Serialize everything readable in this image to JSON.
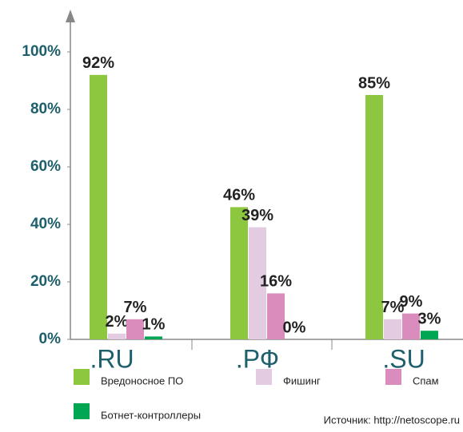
{
  "chart_data": {
    "type": "bar",
    "categories": [
      ".RU",
      ".РФ",
      ".SU"
    ],
    "series": [
      {
        "name": "Вредоносное ПО",
        "color": "#8dc63f",
        "values": [
          92,
          46,
          85
        ],
        "value_labels": [
          "92%",
          "46%",
          "85%"
        ]
      },
      {
        "name": "Фишинг",
        "color": "#e3cbe2",
        "values": [
          2,
          39,
          7
        ],
        "value_labels": [
          "2%",
          "39%",
          "7%"
        ]
      },
      {
        "name": "Спам",
        "color": "#da8cbd",
        "values": [
          7,
          16,
          9
        ],
        "value_labels": [
          "7%",
          "16%",
          "9%"
        ]
      },
      {
        "name": "Ботнет-контроллеры",
        "color": "#00a651",
        "values": [
          1,
          0,
          3
        ],
        "value_labels": [
          "1%",
          "0%",
          "3%"
        ]
      }
    ],
    "ylim": [
      0,
      100
    ],
    "yticks": [
      {
        "value": 0,
        "label": "0%"
      },
      {
        "value": 20,
        "label": "20%"
      },
      {
        "value": 40,
        "label": "40%"
      },
      {
        "value": 60,
        "label": "60%"
      },
      {
        "value": 80,
        "label": "80%"
      },
      {
        "value": 100,
        "label": "100%"
      }
    ],
    "source": "Источник: http://netoscope.ru"
  }
}
